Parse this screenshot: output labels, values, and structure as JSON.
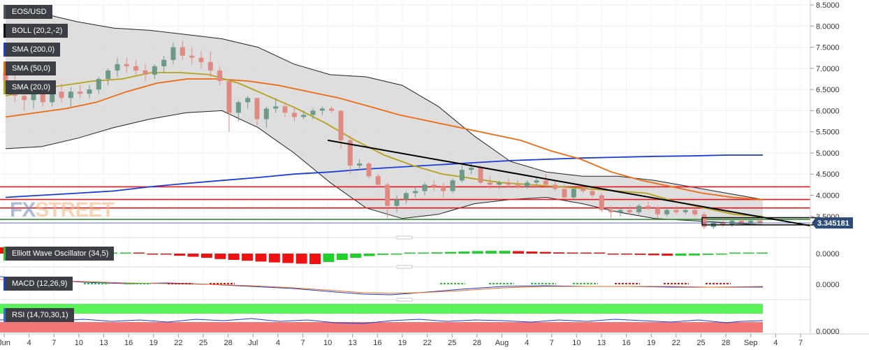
{
  "chart_data": {
    "type": "candlestick",
    "symbol": "EOS/USD",
    "indicator_labels": {
      "pair": "EOS/USD",
      "boll": "BOLL (20,2,-2)",
      "sma200": "SMA (200,0)",
      "sma50": "SMA (50,0)",
      "sma20": "SMA (20,0)",
      "ewo": "Elliott Wave Oscillator (34,5)",
      "macd": "MACD (12,26,9)",
      "rsi": "RSI (14,70,30,1)"
    },
    "colors": {
      "up": "#6d9a86",
      "down": "#e08a84",
      "sma200": "#1a3cd8",
      "sma50": "#ee6a12",
      "sma20": "#b7a11b",
      "boll": "#222222",
      "band_fill": "#d8d8d8",
      "resistance": "#e8161b",
      "support": "#2f8f2f",
      "trendline": "#000000",
      "price_line": "#2a3f8f",
      "badge": "#2c4b78"
    },
    "y_axis": {
      "ticks": [
        "8.5000",
        "8.0000",
        "7.5000",
        "7.0000",
        "6.5000",
        "6.0000",
        "5.5000",
        "5.0000",
        "4.5000",
        "4.0000",
        "3.5000"
      ],
      "range": [
        3.1,
        8.55
      ]
    },
    "current_price": "3.345181",
    "x_axis": {
      "labels": [
        "Jun",
        "4",
        "7",
        "10",
        "13",
        "16",
        "19",
        "22",
        "25",
        "28",
        "Jul",
        "4",
        "7",
        "10",
        "13",
        "16",
        "19",
        "22",
        "25",
        "28",
        "Aug",
        "4",
        "7",
        "10",
        "13",
        "16",
        "19",
        "22",
        "25",
        "28",
        "Sep",
        "4",
        "7"
      ]
    },
    "horizontal_levels": {
      "resistance": [
        4.2,
        3.9,
        3.7
      ],
      "support": [
        3.43
      ]
    },
    "trendline": {
      "from": [
        "Jul 10",
        5.3
      ],
      "to": [
        "Sep 7",
        3.28
      ]
    },
    "highlight_box": {
      "x": [
        "Aug 28",
        "Sep 5"
      ],
      "y": [
        3.3,
        3.47
      ]
    },
    "candles": [
      {
        "o": 6.9,
        "h": 7.1,
        "l": 6.7,
        "c": 6.7
      },
      {
        "o": 6.7,
        "h": 6.95,
        "l": 6.2,
        "c": 6.35
      },
      {
        "o": 6.35,
        "h": 6.5,
        "l": 6.0,
        "c": 6.25
      },
      {
        "o": 6.25,
        "h": 6.5,
        "l": 6.05,
        "c": 6.4
      },
      {
        "o": 6.4,
        "h": 6.6,
        "l": 6.1,
        "c": 6.2
      },
      {
        "o": 6.2,
        "h": 6.5,
        "l": 6.1,
        "c": 6.45
      },
      {
        "o": 6.45,
        "h": 6.65,
        "l": 6.2,
        "c": 6.3
      },
      {
        "o": 6.3,
        "h": 6.55,
        "l": 6.1,
        "c": 6.45
      },
      {
        "o": 6.45,
        "h": 6.6,
        "l": 6.3,
        "c": 6.4
      },
      {
        "o": 6.4,
        "h": 6.6,
        "l": 6.3,
        "c": 6.5
      },
      {
        "o": 6.5,
        "h": 6.8,
        "l": 6.4,
        "c": 6.75
      },
      {
        "o": 6.75,
        "h": 7.0,
        "l": 6.6,
        "c": 6.95
      },
      {
        "o": 6.95,
        "h": 7.25,
        "l": 6.8,
        "c": 7.1
      },
      {
        "o": 7.1,
        "h": 7.25,
        "l": 6.9,
        "c": 7.05
      },
      {
        "o": 7.05,
        "h": 7.2,
        "l": 6.85,
        "c": 6.95
      },
      {
        "o": 6.95,
        "h": 7.1,
        "l": 6.7,
        "c": 6.85
      },
      {
        "o": 6.85,
        "h": 7.1,
        "l": 6.75,
        "c": 7.05
      },
      {
        "o": 7.05,
        "h": 7.3,
        "l": 6.9,
        "c": 7.2
      },
      {
        "o": 7.2,
        "h": 7.6,
        "l": 7.1,
        "c": 7.5
      },
      {
        "o": 7.5,
        "h": 7.65,
        "l": 7.2,
        "c": 7.3
      },
      {
        "o": 7.3,
        "h": 7.5,
        "l": 7.1,
        "c": 7.25
      },
      {
        "o": 7.25,
        "h": 7.4,
        "l": 7.0,
        "c": 7.15
      },
      {
        "o": 7.15,
        "h": 7.4,
        "l": 6.8,
        "c": 6.95
      },
      {
        "o": 6.95,
        "h": 7.05,
        "l": 6.6,
        "c": 6.7
      },
      {
        "o": 6.7,
        "h": 6.75,
        "l": 5.5,
        "c": 5.95
      },
      {
        "o": 5.95,
        "h": 6.25,
        "l": 5.75,
        "c": 6.2
      },
      {
        "o": 6.2,
        "h": 6.35,
        "l": 6.05,
        "c": 6.3
      },
      {
        "o": 6.3,
        "h": 6.3,
        "l": 5.65,
        "c": 5.8
      },
      {
        "o": 5.8,
        "h": 6.1,
        "l": 5.6,
        "c": 6.05
      },
      {
        "o": 6.05,
        "h": 6.3,
        "l": 5.95,
        "c": 6.1
      },
      {
        "o": 6.1,
        "h": 6.2,
        "l": 5.85,
        "c": 5.95
      },
      {
        "o": 5.95,
        "h": 6.1,
        "l": 5.75,
        "c": 5.85
      },
      {
        "o": 5.85,
        "h": 6.0,
        "l": 5.8,
        "c": 5.9
      },
      {
        "o": 5.9,
        "h": 6.05,
        "l": 5.8,
        "c": 6.0
      },
      {
        "o": 6.0,
        "h": 6.1,
        "l": 5.9,
        "c": 6.05
      },
      {
        "o": 6.05,
        "h": 6.1,
        "l": 5.95,
        "c": 6.0
      },
      {
        "o": 6.0,
        "h": 6.0,
        "l": 5.1,
        "c": 5.3
      },
      {
        "o": 5.3,
        "h": 5.4,
        "l": 4.5,
        "c": 4.7
      },
      {
        "o": 4.7,
        "h": 4.85,
        "l": 4.6,
        "c": 4.75
      },
      {
        "o": 4.75,
        "h": 4.8,
        "l": 4.4,
        "c": 4.45
      },
      {
        "o": 4.45,
        "h": 4.5,
        "l": 4.2,
        "c": 4.25
      },
      {
        "o": 4.25,
        "h": 4.3,
        "l": 3.45,
        "c": 3.75
      },
      {
        "o": 3.75,
        "h": 4.0,
        "l": 3.6,
        "c": 3.9
      },
      {
        "o": 3.9,
        "h": 4.1,
        "l": 3.8,
        "c": 4.05
      },
      {
        "o": 4.05,
        "h": 4.2,
        "l": 3.95,
        "c": 4.1
      },
      {
        "o": 4.1,
        "h": 4.3,
        "l": 4.0,
        "c": 4.25
      },
      {
        "o": 4.25,
        "h": 4.35,
        "l": 4.1,
        "c": 4.2
      },
      {
        "o": 4.2,
        "h": 4.3,
        "l": 3.95,
        "c": 4.1
      },
      {
        "o": 4.1,
        "h": 4.4,
        "l": 4.05,
        "c": 4.35
      },
      {
        "o": 4.35,
        "h": 4.7,
        "l": 4.3,
        "c": 4.6
      },
      {
        "o": 4.6,
        "h": 4.75,
        "l": 4.5,
        "c": 4.65
      },
      {
        "o": 4.65,
        "h": 4.7,
        "l": 4.25,
        "c": 4.3
      },
      {
        "o": 4.3,
        "h": 4.45,
        "l": 4.15,
        "c": 4.25
      },
      {
        "o": 4.25,
        "h": 4.35,
        "l": 4.15,
        "c": 4.3
      },
      {
        "o": 4.3,
        "h": 4.4,
        "l": 4.2,
        "c": 4.25
      },
      {
        "o": 4.25,
        "h": 4.35,
        "l": 4.15,
        "c": 4.2
      },
      {
        "o": 4.2,
        "h": 4.35,
        "l": 4.15,
        "c": 4.3
      },
      {
        "o": 4.3,
        "h": 4.45,
        "l": 4.2,
        "c": 4.35
      },
      {
        "o": 4.35,
        "h": 4.5,
        "l": 4.2,
        "c": 4.25
      },
      {
        "o": 4.25,
        "h": 4.35,
        "l": 4.1,
        "c": 4.15
      },
      {
        "o": 4.15,
        "h": 4.25,
        "l": 3.9,
        "c": 3.95
      },
      {
        "o": 3.95,
        "h": 4.2,
        "l": 3.9,
        "c": 4.15
      },
      {
        "o": 4.15,
        "h": 4.25,
        "l": 4.05,
        "c": 4.1
      },
      {
        "o": 4.1,
        "h": 4.2,
        "l": 3.95,
        "c": 4.0
      },
      {
        "o": 4.0,
        "h": 4.05,
        "l": 3.6,
        "c": 3.65
      },
      {
        "o": 3.65,
        "h": 3.75,
        "l": 3.45,
        "c": 3.6
      },
      {
        "o": 3.6,
        "h": 3.7,
        "l": 3.5,
        "c": 3.65
      },
      {
        "o": 3.65,
        "h": 3.75,
        "l": 3.55,
        "c": 3.6
      },
      {
        "o": 3.6,
        "h": 3.8,
        "l": 3.55,
        "c": 3.75
      },
      {
        "o": 3.75,
        "h": 3.85,
        "l": 3.65,
        "c": 3.7
      },
      {
        "o": 3.7,
        "h": 3.75,
        "l": 3.45,
        "c": 3.55
      },
      {
        "o": 3.55,
        "h": 3.7,
        "l": 3.5,
        "c": 3.65
      },
      {
        "o": 3.65,
        "h": 3.75,
        "l": 3.55,
        "c": 3.6
      },
      {
        "o": 3.6,
        "h": 3.7,
        "l": 3.55,
        "c": 3.65
      },
      {
        "o": 3.65,
        "h": 3.7,
        "l": 3.5,
        "c": 3.55
      },
      {
        "o": 3.55,
        "h": 3.6,
        "l": 3.2,
        "c": 3.25
      },
      {
        "o": 3.25,
        "h": 3.4,
        "l": 3.2,
        "c": 3.35
      },
      {
        "o": 3.35,
        "h": 3.45,
        "l": 3.25,
        "c": 3.3
      },
      {
        "o": 3.3,
        "h": 3.45,
        "l": 3.25,
        "c": 3.4
      },
      {
        "o": 3.4,
        "h": 3.45,
        "l": 3.3,
        "c": 3.35
      },
      {
        "o": 3.35,
        "h": 3.45,
        "l": 3.3,
        "c": 3.4
      },
      {
        "o": 3.4,
        "h": 3.45,
        "l": 3.3,
        "c": 3.35
      }
    ],
    "sma20": [
      6.35,
      6.5,
      6.6,
      6.7,
      6.75,
      6.9,
      6.9,
      6.85,
      6.65,
      6.35,
      6.05,
      5.7,
      5.3,
      4.95,
      4.7,
      4.5,
      4.4,
      4.3,
      4.25,
      4.2,
      4.15,
      4.1,
      4.05,
      3.85,
      3.7,
      3.55,
      3.5
    ],
    "sma50": [
      5.85,
      5.95,
      6.05,
      6.2,
      6.45,
      6.65,
      6.75,
      6.75,
      6.7,
      6.6,
      6.45,
      6.3,
      6.1,
      5.9,
      5.75,
      5.6,
      5.45,
      5.3,
      5.05,
      4.85,
      4.55,
      4.35,
      4.2,
      4.05,
      3.95,
      3.9
    ],
    "sma200": [
      3.95,
      4.0,
      4.05,
      4.1,
      4.2,
      4.28,
      4.35,
      4.42,
      4.5,
      4.55,
      4.62,
      4.67,
      4.72,
      4.77,
      4.82,
      4.85,
      4.88,
      4.9,
      4.92,
      4.93,
      4.95,
      4.95
    ],
    "boll_upper": [
      8.2,
      8.3,
      8.1,
      7.95,
      7.9,
      7.8,
      7.7,
      7.5,
      7.1,
      6.85,
      6.8,
      6.6,
      6.1,
      5.4,
      4.8,
      4.55,
      4.45,
      4.45,
      4.35,
      4.2,
      4.05,
      3.9
    ],
    "boll_lower": [
      5.1,
      5.15,
      5.35,
      5.6,
      5.8,
      5.95,
      6.0,
      5.6,
      5.0,
      4.3,
      3.7,
      3.45,
      3.55,
      3.8,
      3.9,
      3.95,
      3.8,
      3.6,
      3.45,
      3.4,
      3.35,
      3.3
    ],
    "ewo_values": [
      0.3,
      0.25,
      0.2,
      0.12,
      0.06,
      0.02,
      0.0,
      0.01,
      0.02,
      0.02,
      0.01,
      -0.02,
      -0.05,
      -0.1,
      -0.15,
      -0.2,
      -0.26,
      -0.3,
      -0.34,
      -0.38,
      -0.42,
      -0.45,
      -0.48,
      -0.5,
      -0.4,
      -0.3,
      -0.2,
      -0.12,
      -0.06,
      -0.03,
      0.01,
      0.03,
      0.06,
      0.08,
      0.1,
      0.12,
      0.13,
      0.13,
      0.12,
      0.1,
      0.08,
      0.06,
      0.04,
      0.02,
      0.0,
      -0.02,
      -0.04,
      -0.06,
      -0.08,
      -0.1,
      -0.1,
      -0.09,
      -0.06,
      -0.03,
      0.0,
      0.02,
      0.02
    ],
    "ewo_zero": "0.0000",
    "macd_zero": "0.0000",
    "rsi_zero": "0.0000"
  }
}
